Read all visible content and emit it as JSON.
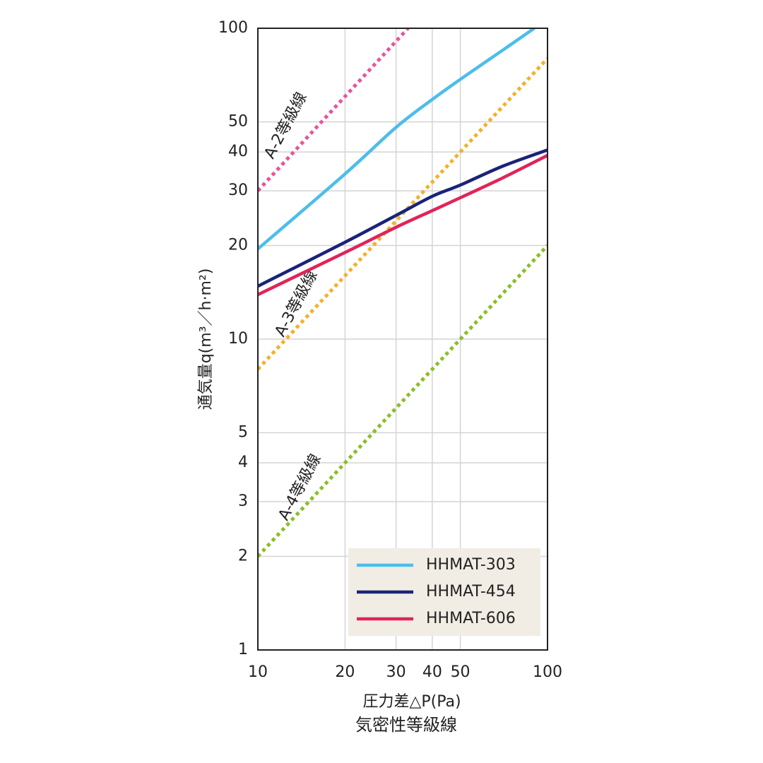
{
  "chart_data": {
    "type": "line",
    "y_label": "通気量q(m³／h·m²)",
    "x_label": "圧力差△P(Pa)",
    "caption": "気密性等級線",
    "xscale": "log",
    "yscale": "log",
    "xlim": [
      10,
      100
    ],
    "ylim": [
      1,
      100
    ],
    "xticks": [
      10,
      20,
      30,
      40,
      50,
      100
    ],
    "yticks": [
      1,
      2,
      3,
      4,
      5,
      10,
      20,
      30,
      40,
      50,
      100
    ],
    "grid": true,
    "legend": "lower-right",
    "series": [
      {
        "name": "HHMAT-303",
        "color": "#4dbdea",
        "x": [
          10,
          20,
          30,
          40,
          50,
          70,
          90
        ],
        "values": [
          19.5,
          34,
          48,
          59,
          68.5,
          85,
          100
        ]
      },
      {
        "name": "HHMAT-454",
        "color": "#1a237a",
        "x": [
          10,
          20,
          30,
          40,
          50,
          70,
          100
        ],
        "values": [
          14.8,
          20.5,
          25,
          28.8,
          31.3,
          36,
          40.6
        ]
      },
      {
        "name": "HHMAT-606",
        "color": "#e0245a",
        "x": [
          10,
          20,
          30,
          40,
          50,
          70,
          100
        ],
        "values": [
          13.9,
          19,
          22.9,
          25.9,
          28.5,
          33,
          39
        ]
      }
    ],
    "grade_lines": [
      {
        "name": "A-2等級線",
        "color": "#e8559a",
        "x": [
          10,
          33
        ],
        "values": [
          30,
          100
        ]
      },
      {
        "name": "A-3等級線",
        "color": "#f5b02a",
        "x": [
          10,
          100
        ],
        "values": [
          8,
          80
        ]
      },
      {
        "name": "A-4等級線",
        "color": "#8cbe2a",
        "x": [
          10,
          100
        ],
        "values": [
          2,
          20
        ]
      }
    ]
  }
}
